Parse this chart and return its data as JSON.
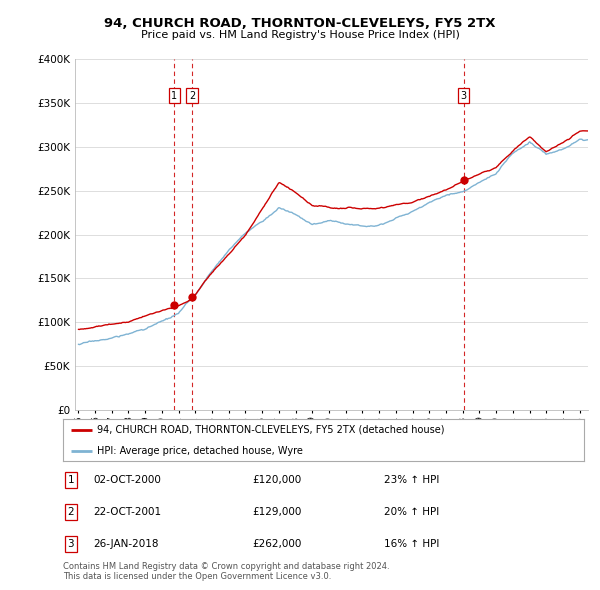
{
  "title": "94, CHURCH ROAD, THORNTON-CLEVELEYS, FY5 2TX",
  "subtitle": "Price paid vs. HM Land Registry's House Price Index (HPI)",
  "legend_line1": "94, CHURCH ROAD, THORNTON-CLEVELEYS, FY5 2TX (detached house)",
  "legend_line2": "HPI: Average price, detached house, Wyre",
  "footnote1": "Contains HM Land Registry data © Crown copyright and database right 2024.",
  "footnote2": "This data is licensed under the Open Government Licence v3.0.",
  "transactions": [
    {
      "num": "1",
      "date": "02-OCT-2000",
      "price": "£120,000",
      "hpi": "23% ↑ HPI",
      "year": 2000.75
    },
    {
      "num": "2",
      "date": "22-OCT-2001",
      "price": "£129,000",
      "hpi": "20% ↑ HPI",
      "year": 2001.8
    },
    {
      "num": "3",
      "date": "26-JAN-2018",
      "price": "£262,000",
      "hpi": "16% ↑ HPI",
      "year": 2018.07
    }
  ],
  "transaction_prices": [
    120000,
    129000,
    262000
  ],
  "ylim": [
    0,
    400000
  ],
  "yticks": [
    0,
    50000,
    100000,
    150000,
    200000,
    250000,
    300000,
    350000,
    400000
  ],
  "xlim_min": 1994.8,
  "xlim_max": 2025.5,
  "line_color_red": "#cc0000",
  "line_color_blue": "#7fb3d3",
  "vline_color": "#cc0000",
  "grid_color": "#dddddd",
  "hpi_anchors_x": [
    1995,
    1996,
    1997,
    1998,
    1999,
    2000,
    2001,
    2002,
    2003,
    2004,
    2005,
    2006,
    2007,
    2008,
    2009,
    2010,
    2011,
    2012,
    2013,
    2014,
    2015,
    2016,
    2017,
    2018,
    2019,
    2020,
    2021,
    2022,
    2023,
    2024,
    2025
  ],
  "hpi_anchors_y": [
    75000,
    78000,
    82000,
    86000,
    93000,
    100000,
    108000,
    128000,
    155000,
    180000,
    198000,
    212000,
    228000,
    220000,
    208000,
    212000,
    210000,
    207000,
    212000,
    220000,
    228000,
    238000,
    248000,
    253000,
    262000,
    272000,
    295000,
    308000,
    292000,
    298000,
    308000
  ],
  "red_anchors_x": [
    1995,
    1996,
    1997,
    1998,
    1999,
    2000.75,
    2001.8,
    2003,
    2005,
    2007,
    2008,
    2009,
    2011,
    2013,
    2015,
    2017,
    2018.07,
    2019,
    2020,
    2021,
    2022,
    2023,
    2024,
    2025
  ],
  "red_anchors_y": [
    92000,
    95000,
    98000,
    102000,
    110000,
    120000,
    129000,
    160000,
    200000,
    258000,
    248000,
    232000,
    228000,
    230000,
    238000,
    252000,
    262000,
    268000,
    275000,
    295000,
    310000,
    295000,
    305000,
    318000
  ],
  "noise_seed": 17
}
